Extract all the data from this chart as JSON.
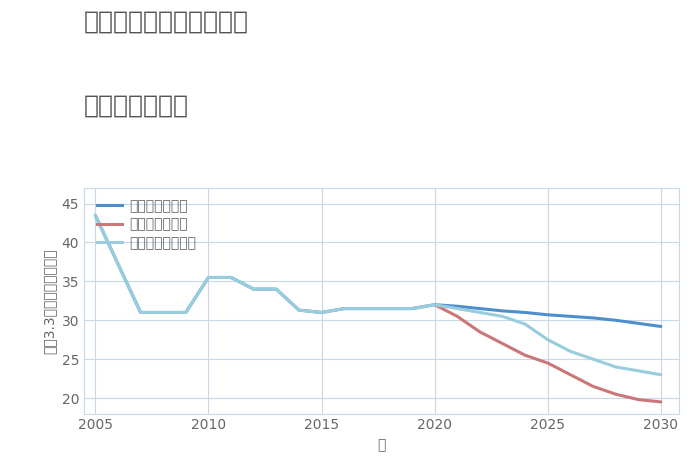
{
  "title_line1": "埼玉県春日部市新方袋の",
  "title_line2": "土地の価格推移",
  "xlabel": "年",
  "ylabel": "坪（3.3㎡）単価（万円）",
  "background_color": "#ffffff",
  "grid_color": "#c8d8e8",
  "title_color": "#555555",
  "label_color": "#666666",
  "series": [
    {
      "label": "グッドシナリオ",
      "color": "#4d8fcc",
      "linewidth": 2.2,
      "years": [
        2005,
        2007,
        2008,
        2009,
        2010,
        2011,
        2012,
        2013,
        2014,
        2015,
        2016,
        2017,
        2018,
        2019,
        2020,
        2021,
        2022,
        2023,
        2024,
        2025,
        2026,
        2027,
        2028,
        2029,
        2030
      ],
      "values": [
        43.5,
        31.0,
        31.0,
        31.0,
        35.5,
        35.5,
        34.0,
        34.0,
        31.3,
        31.0,
        31.5,
        31.5,
        31.5,
        31.5,
        32.0,
        31.8,
        31.5,
        31.2,
        31.0,
        30.7,
        30.5,
        30.3,
        30.0,
        29.6,
        29.2
      ]
    },
    {
      "label": "バッドシナリオ",
      "color": "#cc7777",
      "linewidth": 2.2,
      "years": [
        2020,
        2021,
        2022,
        2023,
        2024,
        2025,
        2026,
        2027,
        2028,
        2029,
        2030
      ],
      "values": [
        32.0,
        30.5,
        28.5,
        27.0,
        25.5,
        24.5,
        23.0,
        21.5,
        20.5,
        19.8,
        19.5
      ]
    },
    {
      "label": "ノーマルシナリオ",
      "color": "#99ccdd",
      "linewidth": 2.2,
      "years": [
        2005,
        2007,
        2008,
        2009,
        2010,
        2011,
        2012,
        2013,
        2014,
        2015,
        2016,
        2017,
        2018,
        2019,
        2020,
        2021,
        2022,
        2023,
        2024,
        2025,
        2026,
        2027,
        2028,
        2029,
        2030
      ],
      "values": [
        43.5,
        31.0,
        31.0,
        31.0,
        35.5,
        35.5,
        34.0,
        34.0,
        31.3,
        31.0,
        31.5,
        31.5,
        31.5,
        31.5,
        32.0,
        31.5,
        31.0,
        30.5,
        29.5,
        27.5,
        26.0,
        25.0,
        24.0,
        23.5,
        23.0
      ]
    }
  ],
  "ylim": [
    18,
    47
  ],
  "xlim": [
    2004.5,
    2030.8
  ],
  "yticks": [
    20,
    25,
    30,
    35,
    40,
    45
  ],
  "xticks": [
    2005,
    2010,
    2015,
    2020,
    2025,
    2030
  ],
  "title_fontsize": 18,
  "axis_fontsize": 10,
  "tick_fontsize": 10,
  "legend_fontsize": 10
}
